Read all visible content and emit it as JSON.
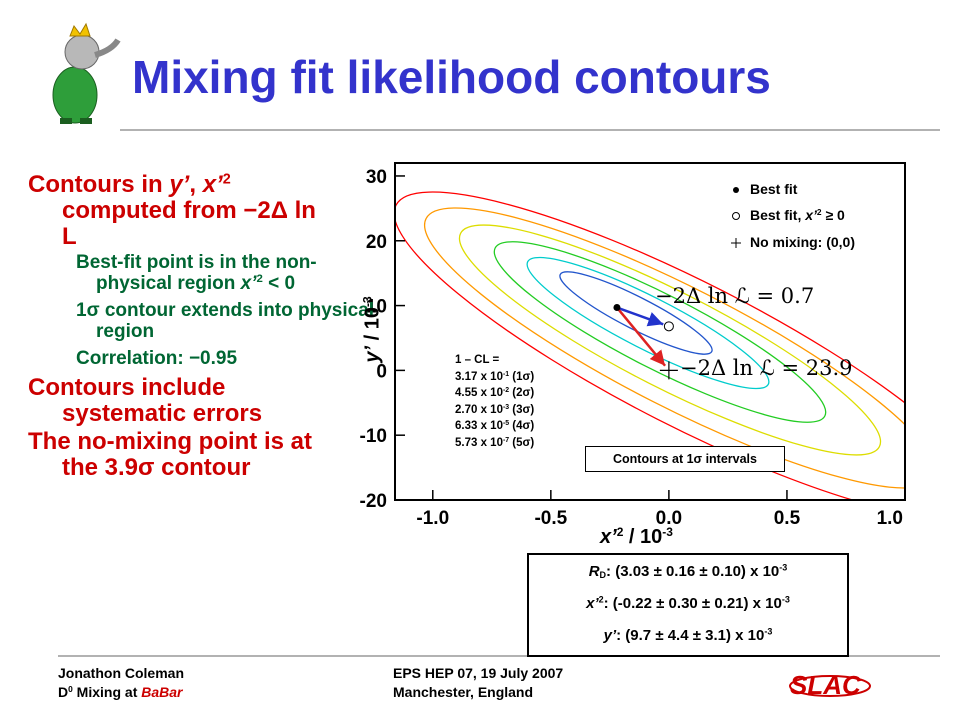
{
  "header": {
    "title": "Mixing fit likelihood contours"
  },
  "left": {
    "items": [
      {
        "level": 1,
        "runs": [
          "Contours in ",
          {
            "i": "y’"
          },
          ", ",
          {
            "i": "x’"
          },
          {
            "sup": "2"
          },
          " computed from −2Δ ln L"
        ]
      },
      {
        "level": 2,
        "runs": [
          "Best-fit point is in the non-physical region ",
          {
            "i": "x’"
          },
          {
            "sup": "2"
          },
          " < 0"
        ]
      },
      {
        "level": 2,
        "runs": [
          "1σ contour extends into physical region"
        ]
      },
      {
        "level": 2,
        "runs": [
          "Correlation: −0.95"
        ]
      },
      {
        "level": 1,
        "runs": [
          "Contours include systematic errors"
        ]
      },
      {
        "level": 1,
        "runs": [
          "The no-mixing point is at the 3.9σ contour"
        ]
      }
    ]
  },
  "plot": {
    "xlim": [
      -1.16,
      1.0
    ],
    "ylim": [
      -20,
      32
    ],
    "xticks": [
      {
        "value": -1,
        "label": "-1.0"
      },
      {
        "value": -0.5,
        "label": "-0.5"
      },
      {
        "value": 0,
        "label": "0.0"
      },
      0.5,
      {
        "value": 1,
        "label": "1.0"
      }
    ],
    "yticks": [
      -20,
      -10,
      0,
      10,
      20,
      30
    ],
    "xlabel": [
      {
        "i": "x’"
      },
      {
        "sup": "2"
      },
      " / 10",
      {
        "sup": "-3"
      }
    ],
    "ylabel": [
      {
        "i": "y’"
      },
      " / 10",
      {
        "sup": "-3"
      }
    ],
    "points": [
      {
        "label": [
          "Best fit"
        ],
        "x": -0.22,
        "y": 9.7
      },
      {
        "label": [
          "Best fit, ",
          {
            "i": "x’"
          },
          {
            "sup": "2"
          },
          " ≥ 0"
        ],
        "x": 0,
        "y": 6.8
      },
      {
        "label": [
          "No mixing: (0,0)"
        ],
        "x": 0,
        "y": 0
      }
    ],
    "annotations": [
      "−2Δ ln ℒ = 0.7",
      "−2Δ ln ℒ = 23.9"
    ],
    "cl_title": "1 – CL =",
    "cl_lines": [
      [
        "3.17 x 10",
        {
          "sup": "-1"
        },
        " (1σ)"
      ],
      [
        "4.55 x 10",
        {
          "sup": "-2"
        },
        " (2σ)"
      ],
      [
        "2.70 x 10",
        {
          "sup": "-3"
        },
        " (3σ)"
      ],
      [
        "6.33 x 10",
        {
          "sup": "-5"
        },
        " (4σ)"
      ],
      [
        "5.73 x 10",
        {
          "sup": "-7"
        },
        " (5σ)"
      ]
    ],
    "contour_note": "Contours at 1σ intervals"
  },
  "results": [
    [
      {
        "i": "R"
      },
      {
        "sub": "D"
      },
      ": (3.03 ± 0.16 ± 0.10) x 10",
      {
        "sup": "-3"
      }
    ],
    [
      {
        "i": "x’"
      },
      {
        "sup": "2"
      },
      ": (-0.22 ± 0.30 ± 0.21) x 10",
      {
        "sup": "-3"
      }
    ],
    [
      {
        "i": "y’"
      },
      ":  (9.7 ± 4.4 ± 3.1) x 10",
      {
        "sup": "-3"
      }
    ]
  ],
  "footer": {
    "author": "Jonathon Coleman",
    "topic": [
      "D",
      {
        "sup": "0"
      },
      " Mixing at ",
      {
        "em": "BaBar"
      }
    ],
    "conference": "EPS HEP 07, 19 July 2007",
    "location": "Manchester, England",
    "logo": "SLAC"
  }
}
